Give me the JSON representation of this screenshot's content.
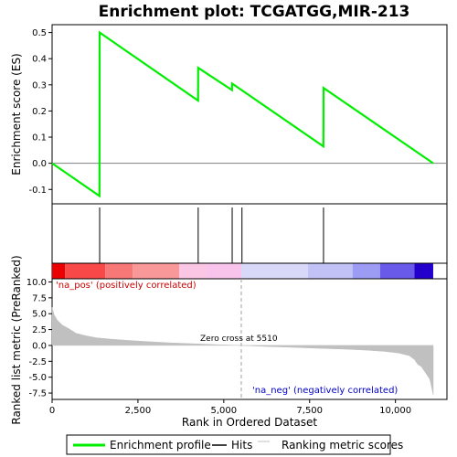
{
  "chart_data": {
    "type": "line",
    "title": "Enrichment plot: TCGATGG,MIR-213",
    "x_axis": {
      "label": "Rank in Ordered Dataset",
      "range": [
        0,
        11500
      ],
      "ticks": [
        0,
        2500,
        5000,
        7500,
        10000
      ],
      "tick_labels": [
        "0",
        "2,500",
        "5,000",
        "7,500",
        "10,000"
      ]
    },
    "es_panel": {
      "ylabel": "Enrichment score (ES)",
      "ylim": [
        -0.155,
        0.53
      ],
      "ticks": [
        -0.1,
        0.0,
        0.1,
        0.2,
        0.3,
        0.4,
        0.5
      ],
      "tick_labels": [
        "-0.1",
        "0.0",
        "0.1",
        "0.2",
        "0.3",
        "0.4",
        "0.5"
      ],
      "series": [
        {
          "name": "Enrichment profile",
          "color": "#00ee00",
          "x": [
            0,
            1380,
            1385,
            4250,
            4255,
            5240,
            5245,
            7900,
            7905,
            11100
          ],
          "y": [
            0.0,
            -0.125,
            0.5,
            0.24,
            0.365,
            0.28,
            0.305,
            0.065,
            0.288,
            0.0
          ]
        }
      ]
    },
    "hits": {
      "name": "Hits",
      "positions": [
        1385,
        4255,
        5245,
        5530,
        7905
      ]
    },
    "color_bar": {
      "segments": [
        {
          "start": 0,
          "end": 380,
          "color": "#ea0000"
        },
        {
          "start": 380,
          "end": 1550,
          "color": "#f84848"
        },
        {
          "start": 1550,
          "end": 2350,
          "color": "#f87878"
        },
        {
          "start": 2350,
          "end": 3700,
          "color": "#f89898"
        },
        {
          "start": 3700,
          "end": 4500,
          "color": "#fac6e4"
        },
        {
          "start": 4500,
          "end": 5510,
          "color": "#f8c4ec"
        },
        {
          "start": 5510,
          "end": 7450,
          "color": "#d8d8f8"
        },
        {
          "start": 7450,
          "end": 8750,
          "color": "#c2c2f6"
        },
        {
          "start": 8750,
          "end": 9550,
          "color": "#9c9cf4"
        },
        {
          "start": 9550,
          "end": 10550,
          "color": "#6a5aea"
        },
        {
          "start": 10550,
          "end": 11100,
          "color": "#2400cc"
        }
      ]
    },
    "metric_panel": {
      "ylabel": "Ranked list metric (PreRanked)",
      "ylim": [
        -8.5,
        10.5
      ],
      "ticks": [
        -7.5,
        -5.0,
        -2.5,
        0.0,
        2.5,
        5.0,
        7.5,
        10.0
      ],
      "tick_labels": [
        "-7.5",
        "-5.0",
        "-2.5",
        "0.0",
        "2.5",
        "5.0",
        "7.5",
        "10.0"
      ],
      "series": [
        {
          "name": "Ranking metric scores",
          "color": "#c0c0c0",
          "x": [
            0,
            60,
            150,
            300,
            500,
            700,
            1000,
            1300,
            1700,
            2200,
            2800,
            3500,
            4200,
            4800,
            5510,
            6200,
            7000,
            7800,
            8600,
            9200,
            9700,
            10100,
            10400,
            10550,
            10650,
            10750,
            10900,
            11000,
            11050,
            11100
          ],
          "y": [
            6.0,
            4.8,
            4.0,
            3.2,
            2.6,
            1.9,
            1.5,
            1.2,
            1.0,
            0.8,
            0.6,
            0.4,
            0.25,
            0.12,
            0.0,
            -0.15,
            -0.3,
            -0.45,
            -0.6,
            -0.75,
            -0.95,
            -1.2,
            -1.6,
            -2.2,
            -3.0,
            -3.3,
            -4.5,
            -5.3,
            -6.5,
            -7.8
          ]
        }
      ],
      "annotations": {
        "positive": "'na_pos' (positively correlated)",
        "negative": "'na_neg' (negatively correlated)",
        "zero_cross": "Zero cross at 5510",
        "zero_cross_x": 5510
      }
    },
    "legend": {
      "placement": "bottom",
      "items": [
        {
          "label": "Enrichment profile",
          "color": "#00ee00"
        },
        {
          "label": "Hits",
          "color": "#000000"
        },
        {
          "label": "Ranking metric scores",
          "color": "#c0c0c0"
        }
      ]
    }
  }
}
